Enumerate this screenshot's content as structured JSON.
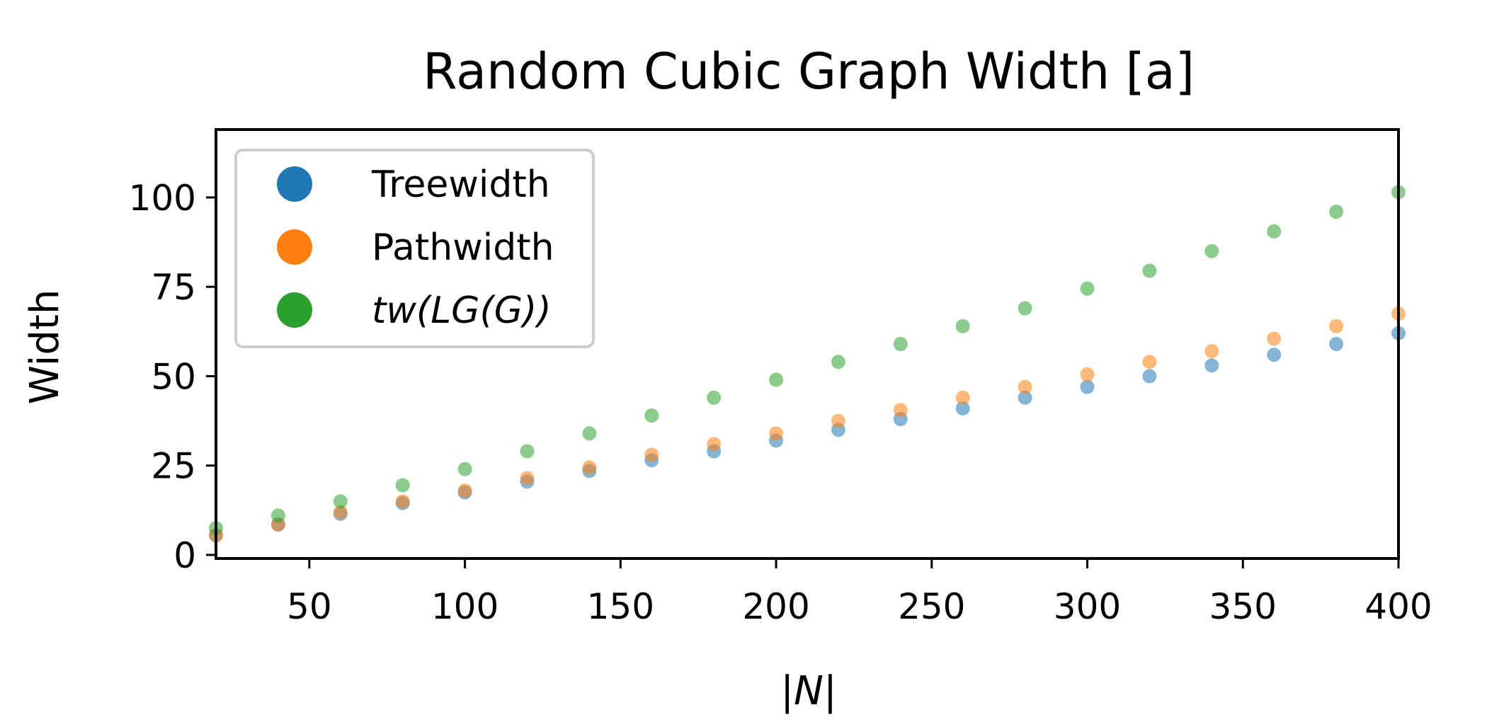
{
  "chart_data": {
    "type": "scatter",
    "title": "Random Cubic Graph Width [a]",
    "xlabel": "|N|",
    "ylabel": "Width",
    "xlim": [
      20,
      400
    ],
    "ylim": [
      -1,
      119
    ],
    "xticks": [
      50,
      100,
      150,
      200,
      250,
      300,
      350,
      400
    ],
    "yticks": [
      0,
      25,
      50,
      75,
      100
    ],
    "grid": false,
    "legend_position": "top-left",
    "series": [
      {
        "name": "Treewidth",
        "color": "#1f77b4",
        "x": [
          20,
          40,
          60,
          80,
          100,
          120,
          140,
          160,
          180,
          200,
          220,
          240,
          260,
          280,
          300,
          320,
          340,
          360,
          380,
          400
        ],
        "y": [
          5.5,
          8.5,
          11.5,
          14.5,
          17.5,
          20.5,
          23.5,
          26.5,
          29,
          32,
          35,
          38,
          41,
          44,
          47,
          50,
          53,
          56,
          59,
          62
        ]
      },
      {
        "name": "Pathwidth",
        "color": "#ff7f0e",
        "x": [
          20,
          40,
          60,
          80,
          100,
          120,
          140,
          160,
          180,
          200,
          220,
          240,
          260,
          280,
          300,
          320,
          340,
          360,
          380,
          400
        ],
        "y": [
          5.5,
          8.5,
          12,
          15,
          18,
          21.5,
          24.5,
          28,
          31,
          34,
          37.5,
          40.5,
          44,
          47,
          50.5,
          54,
          57,
          60.5,
          64,
          67.5
        ]
      },
      {
        "name": "tw(LG(G))",
        "color": "#2ca02c",
        "x": [
          20,
          40,
          60,
          80,
          100,
          120,
          140,
          160,
          180,
          200,
          220,
          240,
          260,
          280,
          300,
          320,
          340,
          360,
          380,
          400
        ],
        "y": [
          7.5,
          11,
          15,
          19.5,
          24,
          29,
          34,
          39,
          44,
          49,
          54,
          59,
          64,
          69,
          74.5,
          79.5,
          85,
          90.5,
          96,
          101.5
        ]
      }
    ]
  }
}
